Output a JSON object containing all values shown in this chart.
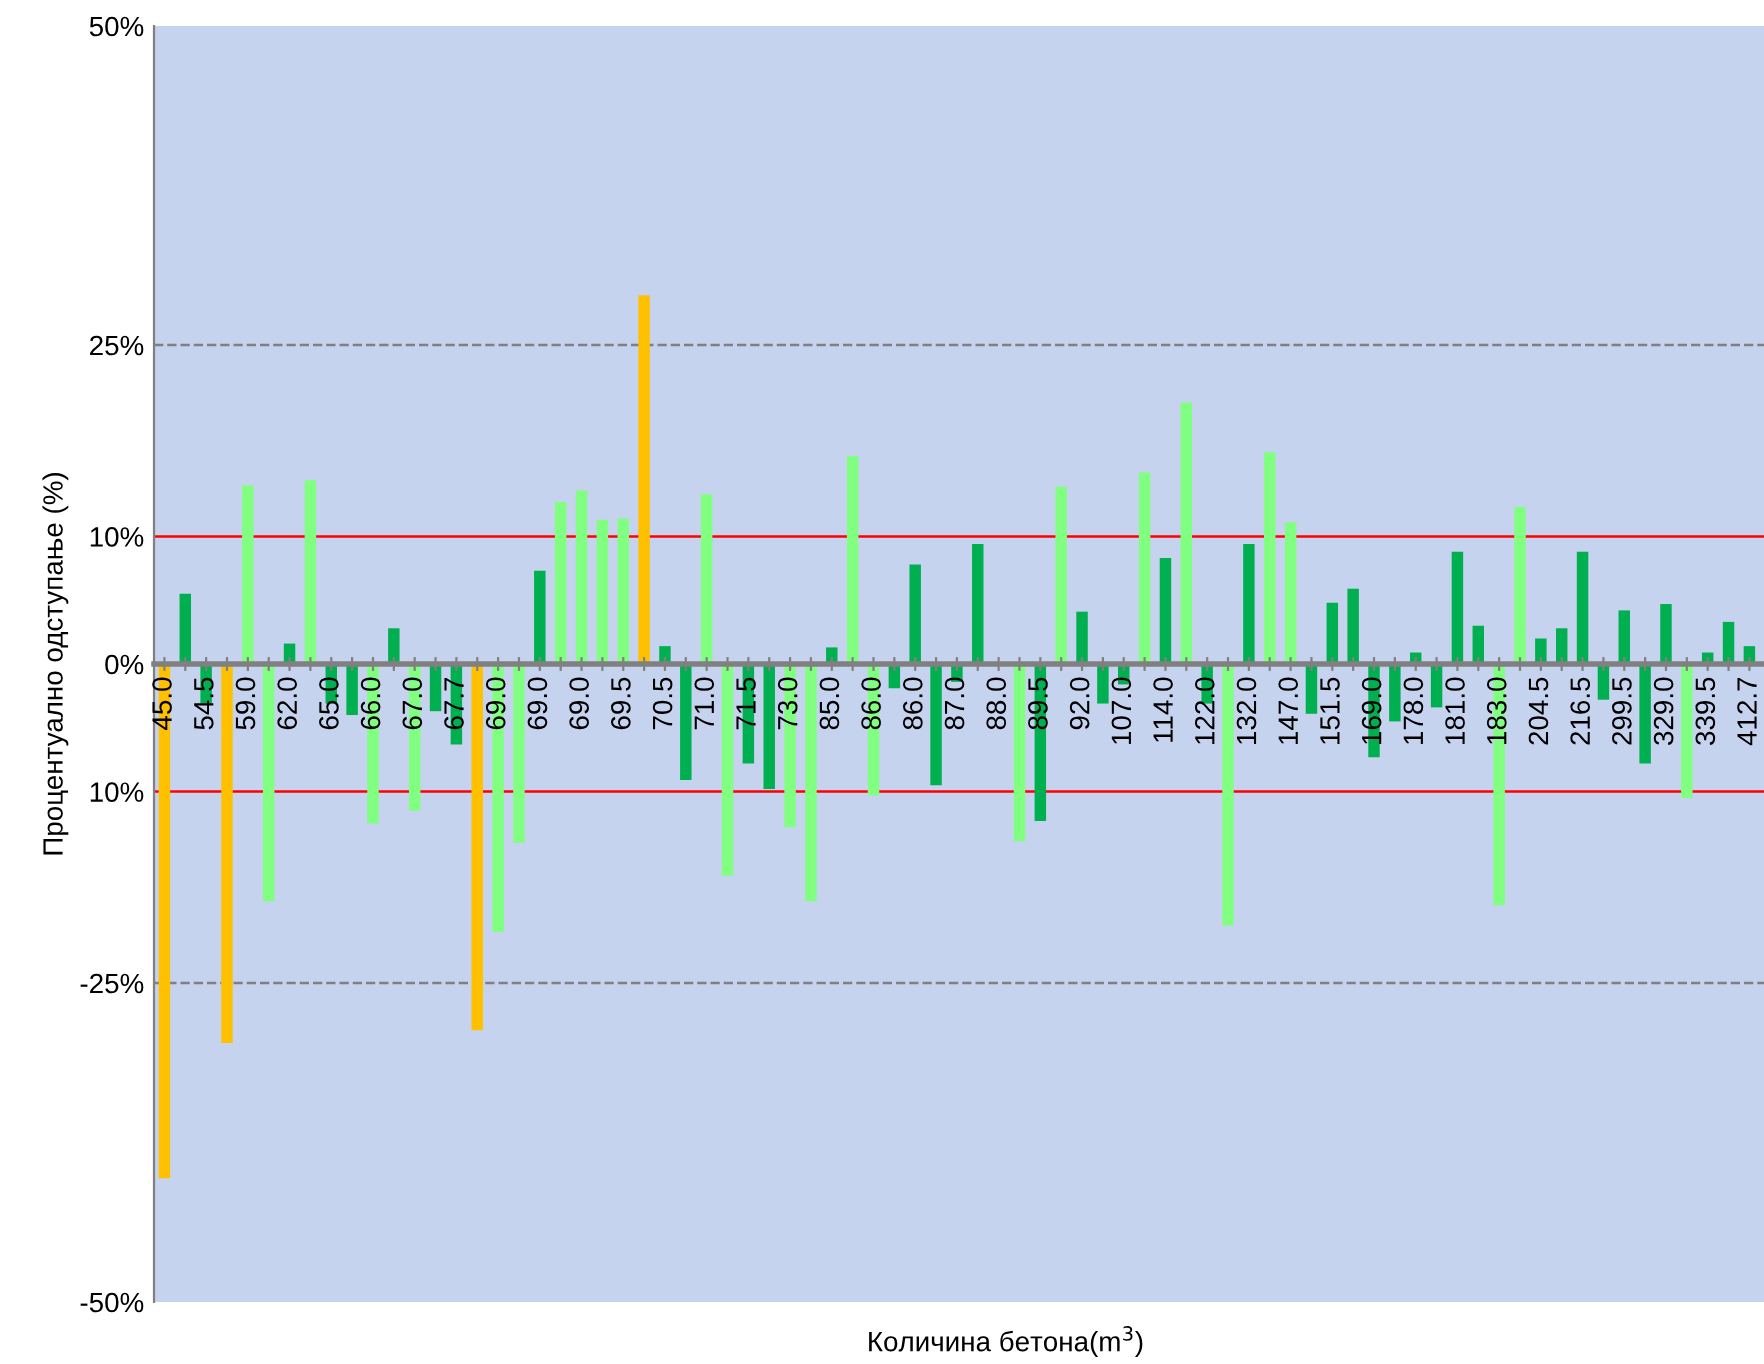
{
  "chart_data": {
    "type": "bar",
    "xlabel": "Количина бетона(m$^{3}$)",
    "ylabel": "Процентуално одступање (%)",
    "categories": [
      "45.0",
      null,
      "54.5",
      null,
      "59.0",
      null,
      "62.0",
      null,
      "65.0",
      null,
      "66.0",
      null,
      "67.0",
      null,
      "67.7",
      null,
      "69.0",
      null,
      "69.0",
      null,
      "69.0",
      null,
      "69.5",
      null,
      "70.5",
      null,
      "71.0",
      null,
      "71.5",
      null,
      "73.0",
      null,
      "85.0",
      null,
      "86.0",
      null,
      "86.0",
      null,
      "87.0",
      null,
      "88.0",
      null,
      "89.5",
      null,
      "92.0",
      null,
      "107.0",
      null,
      "114.0",
      null,
      "122.0",
      null,
      "132.0",
      null,
      "147.0",
      null,
      "151.5",
      null,
      "169.0",
      null,
      "178.0",
      null,
      "181.0",
      null,
      "183.0",
      null,
      "204.5",
      null,
      "216.5",
      null,
      "299.5",
      null,
      "329.0",
      null,
      "339.5",
      null,
      "412.7"
    ],
    "values": [
      -40.3,
      5.5,
      -3.1,
      -29.7,
      14,
      -18.6,
      1.6,
      14.4,
      -3.1,
      -4,
      -12.5,
      2.8,
      -11.5,
      -3.7,
      -6.3,
      -28.7,
      -21,
      -14,
      7.3,
      12.7,
      13.6,
      11.3,
      11.4,
      28.9,
      1.4,
      -9.1,
      13.3,
      -16.6,
      -7.8,
      -9.8,
      -12.8,
      -18.6,
      1.3,
      16.3,
      -10.3,
      -1.9,
      7.8,
      -9.5,
      -1.4,
      9.4,
      null,
      -13.9,
      -12.3,
      13.9,
      4.1,
      -3.1,
      -1.6,
      15,
      8.3,
      20.5,
      -3.1,
      -20.5,
      9.4,
      16.6,
      11.1,
      -3.9,
      4.8,
      5.9,
      -7.3,
      -4.5,
      0.9,
      -3.4,
      8.8,
      3,
      -18.9,
      12.3,
      2,
      2.8,
      8.8,
      -2.8,
      4.2,
      -7.8,
      4.7,
      -10.5,
      0.9,
      3.3,
      1.4
    ],
    "colors": [
      "#ffc000",
      "#00b050",
      "#00b050",
      "#ffc000",
      "#80ff80",
      "#80ff80",
      "#00b050",
      "#80ff80",
      "#00b050",
      "#00b050",
      "#80ff80",
      "#00b050",
      "#80ff80",
      "#00b050",
      "#00b050",
      "#ffc000",
      "#80ff80",
      "#80ff80",
      "#00b050",
      "#80ff80",
      "#80ff80",
      "#80ff80",
      "#80ff80",
      "#ffc000",
      "#00b050",
      "#00b050",
      "#80ff80",
      "#80ff80",
      "#00b050",
      "#00b050",
      "#80ff80",
      "#80ff80",
      "#00b050",
      "#80ff80",
      "#80ff80",
      "#00b050",
      "#00b050",
      "#00b050",
      "#00b050",
      "#00b050",
      "#00b050",
      "#80ff80",
      "#00b050",
      "#80ff80",
      "#00b050",
      "#00b050",
      "#00b050",
      "#80ff80",
      "#00b050",
      "#80ff80",
      "#00b050",
      "#80ff80",
      "#00b050",
      "#80ff80",
      "#80ff80",
      "#00b050",
      "#00b050",
      "#00b050",
      "#00b050",
      "#00b050",
      "#00b050",
      "#00b050",
      "#00b050",
      "#00b050",
      "#80ff80",
      "#80ff80",
      "#00b050",
      "#00b050",
      "#00b050",
      "#00b050",
      "#00b050",
      "#00b050",
      "#00b050",
      "#80ff80",
      "#00b050",
      "#00b050",
      "#00b050"
    ],
    "ylim": [
      -50,
      50
    ],
    "yticks": [
      {
        "value": 50,
        "label": "50%"
      },
      {
        "value": 25,
        "label": "25%"
      },
      {
        "value": 10,
        "label": "10%"
      },
      {
        "value": 0,
        "label": "0%"
      },
      {
        "value": -10,
        "label": "10%"
      },
      {
        "value": -25,
        "label": "-25%"
      },
      {
        "value": -50,
        "label": "-50%"
      }
    ],
    "ref_lines": [
      {
        "axis": "y",
        "value": 10,
        "color": "#ff0000",
        "line_style": "solid"
      },
      {
        "axis": "y",
        "value": -10,
        "color": "#ff0000",
        "line_style": "solid"
      },
      {
        "axis": "y",
        "value": 25,
        "color": "#808080",
        "line_style": "dashed"
      },
      {
        "axis": "y",
        "value": -25,
        "color": "#808080",
        "line_style": "dashed"
      }
    ],
    "grid": false
  }
}
